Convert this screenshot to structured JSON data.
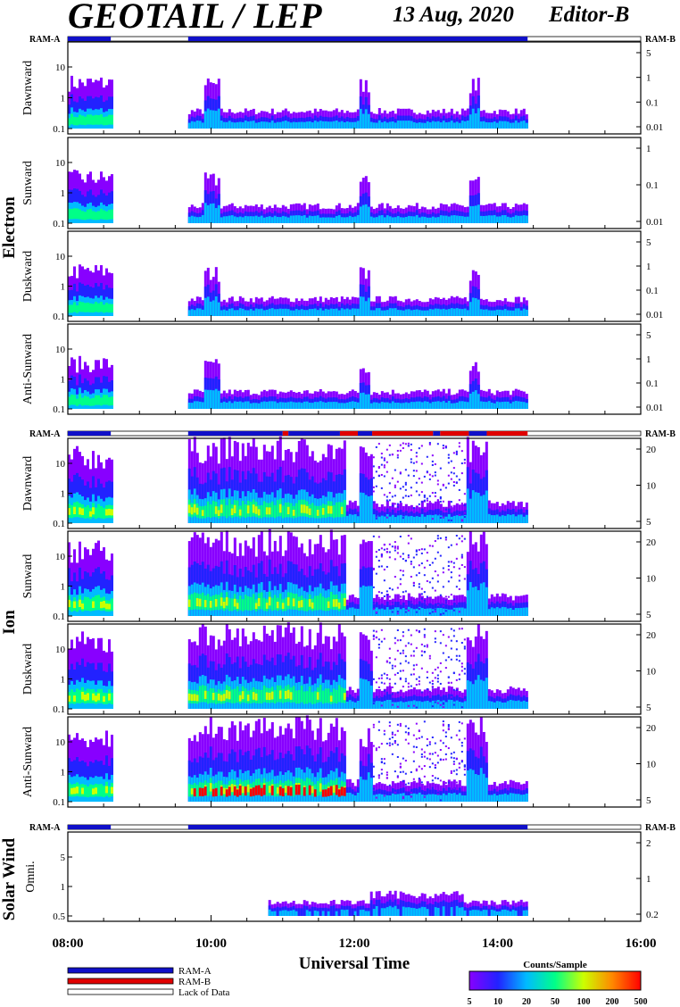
{
  "header": {
    "title": "GEOTAIL / LEP",
    "date": "13 Aug, 2020",
    "editor": "Editor-B"
  },
  "ram_labels": {
    "left": "RAM-A",
    "right": "RAM-B"
  },
  "groups": {
    "electron": "Electron",
    "ion": "Ion",
    "solar_wind": "Solar Wind"
  },
  "x_axis": {
    "label": "Universal Time",
    "ticks": [
      "08:00",
      "10:00",
      "12:00",
      "14:00",
      "16:00"
    ],
    "range_hours": [
      8,
      16
    ]
  },
  "legend": {
    "ram_a": "RAM-A",
    "ram_b": "RAM-B",
    "lack": "Lack of Data",
    "ram_a_color": "#1010c8",
    "ram_b_color": "#e00000"
  },
  "colorbar": {
    "title": "Counts/Sample",
    "ticks": [
      "5",
      "10",
      "20",
      "50",
      "100",
      "200",
      "500"
    ],
    "colors": [
      "#8800ff",
      "#2222ff",
      "#00bbff",
      "#00ff88",
      "#ccff00",
      "#ff8800",
      "#ff0000"
    ]
  },
  "chart_data": [
    {
      "type": "heatmap",
      "group": "Electron",
      "panel": "Dawnward",
      "left_ticks": [
        "10",
        "1",
        "0.1"
      ],
      "right_ticks": [
        "5",
        "1",
        "0.1",
        "0.01"
      ],
      "data_intervals_ut": [
        [
          8.0,
          8.6
        ],
        [
          9.68,
          14.42
        ]
      ]
    },
    {
      "type": "heatmap",
      "group": "Electron",
      "panel": "Sunward",
      "left_ticks": [
        "10",
        "1",
        "0.1"
      ],
      "right_ticks": [
        "1",
        "0.1",
        "0.01"
      ],
      "data_intervals_ut": [
        [
          8.0,
          8.6
        ],
        [
          9.68,
          14.42
        ]
      ]
    },
    {
      "type": "heatmap",
      "group": "Electron",
      "panel": "Duskward",
      "left_ticks": [
        "10",
        "1",
        "0.1"
      ],
      "right_ticks": [
        "5",
        "1",
        "0.1",
        "0.01"
      ],
      "data_intervals_ut": [
        [
          8.0,
          8.6
        ],
        [
          9.68,
          14.42
        ]
      ]
    },
    {
      "type": "heatmap",
      "group": "Electron",
      "panel": "Anti-Sunward",
      "left_ticks": [
        "10",
        "1",
        "0.1"
      ],
      "right_ticks": [
        "5",
        "1",
        "0.1",
        "0.01"
      ],
      "data_intervals_ut": [
        [
          8.0,
          8.6
        ],
        [
          9.68,
          14.42
        ]
      ]
    },
    {
      "type": "heatmap",
      "group": "Ion",
      "panel": "Dawnward",
      "left_ticks": [
        "10",
        "1",
        "0.1"
      ],
      "right_ticks": [
        "20",
        "10",
        "5"
      ],
      "data_intervals_ut": [
        [
          8.0,
          8.6
        ],
        [
          9.68,
          14.42
        ]
      ]
    },
    {
      "type": "heatmap",
      "group": "Ion",
      "panel": "Sunward",
      "left_ticks": [
        "10",
        "1",
        "0.1"
      ],
      "right_ticks": [
        "20",
        "10",
        "5"
      ],
      "data_intervals_ut": [
        [
          8.0,
          8.6
        ],
        [
          9.68,
          14.42
        ]
      ]
    },
    {
      "type": "heatmap",
      "group": "Ion",
      "panel": "Duskward",
      "left_ticks": [
        "10",
        "1",
        "0.1"
      ],
      "right_ticks": [
        "20",
        "10",
        "5"
      ],
      "data_intervals_ut": [
        [
          8.0,
          8.6
        ],
        [
          9.68,
          14.42
        ]
      ]
    },
    {
      "type": "heatmap",
      "group": "Ion",
      "panel": "Anti-Sunward",
      "left_ticks": [
        "10",
        "1",
        "0.1"
      ],
      "right_ticks": [
        "20",
        "10",
        "5"
      ],
      "data_intervals_ut": [
        [
          8.0,
          8.6
        ],
        [
          9.68,
          14.42
        ]
      ]
    },
    {
      "type": "heatmap",
      "group": "Solar Wind",
      "panel": "Omni.",
      "left_ticks": [
        "5",
        "1",
        "0.5"
      ],
      "right_ticks": [
        "2",
        "1",
        "0.2"
      ],
      "data_intervals_ut": [
        [
          10.8,
          14.42
        ]
      ]
    }
  ],
  "ram_bars": {
    "electron": [
      {
        "from": 8.0,
        "to": 8.6,
        "mode": "a"
      },
      {
        "from": 9.68,
        "to": 14.42,
        "mode": "a"
      }
    ],
    "ion": [
      {
        "from": 8.0,
        "to": 8.6,
        "mode": "a"
      },
      {
        "from": 9.68,
        "to": 11.0,
        "mode": "a"
      },
      {
        "from": 11.0,
        "to": 11.08,
        "mode": "b"
      },
      {
        "from": 11.08,
        "to": 11.8,
        "mode": "a"
      },
      {
        "from": 11.8,
        "to": 12.05,
        "mode": "b"
      },
      {
        "from": 12.05,
        "to": 12.25,
        "mode": "a"
      },
      {
        "from": 12.25,
        "to": 13.1,
        "mode": "b"
      },
      {
        "from": 13.1,
        "to": 13.2,
        "mode": "a"
      },
      {
        "from": 13.2,
        "to": 13.6,
        "mode": "b"
      },
      {
        "from": 13.6,
        "to": 13.85,
        "mode": "a"
      },
      {
        "from": 13.85,
        "to": 14.42,
        "mode": "b"
      }
    ],
    "solar_wind": [
      {
        "from": 8.0,
        "to": 8.6,
        "mode": "a"
      },
      {
        "from": 9.68,
        "to": 14.42,
        "mode": "a"
      }
    ]
  }
}
